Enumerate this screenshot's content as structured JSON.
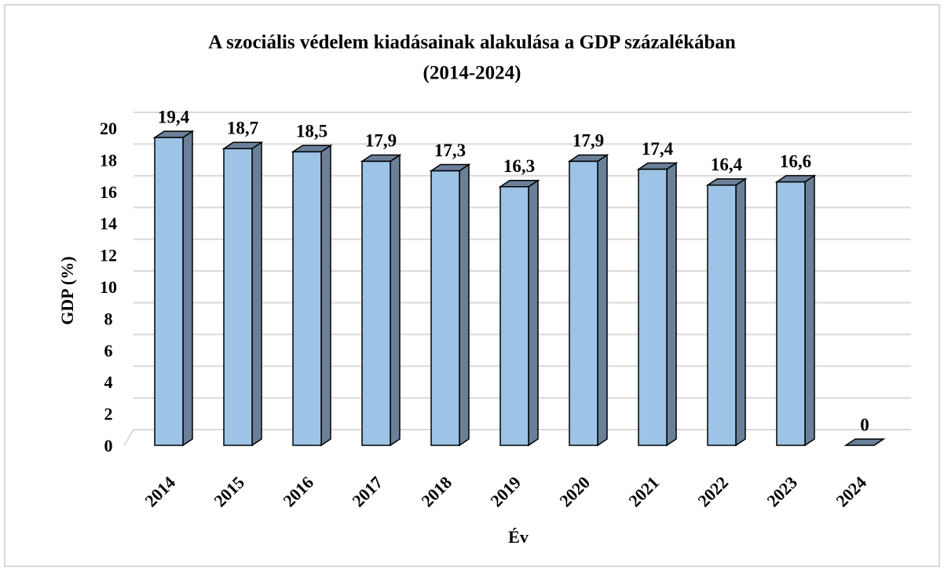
{
  "chart_data": {
    "type": "bar3d",
    "title": "A szociális védelem kiadásainak alakulása a GDP százalékában",
    "subtitle": "(2014-2024)",
    "x_label": "Év",
    "y_label": "GDP (%)",
    "categories": [
      "2014",
      "2015",
      "2016",
      "2017",
      "2018",
      "2019",
      "2020",
      "2021",
      "2022",
      "2023",
      "2024"
    ],
    "values": [
      19.4,
      18.7,
      18.5,
      17.9,
      17.3,
      16.3,
      17.9,
      17.4,
      16.4,
      16.6,
      0
    ],
    "value_labels": [
      "19,4",
      "18,7",
      "18,5",
      "17,9",
      "17,3",
      "16,3",
      "17,9",
      "17,4",
      "16,4",
      "16,6",
      "0"
    ],
    "color": "#9dc3e6",
    "side_color": "#6a8099",
    "ylim": [
      0,
      20
    ],
    "yticks": [
      0,
      2,
      4,
      6,
      8,
      10,
      12,
      14,
      16,
      18,
      20
    ],
    "grid": true
  }
}
